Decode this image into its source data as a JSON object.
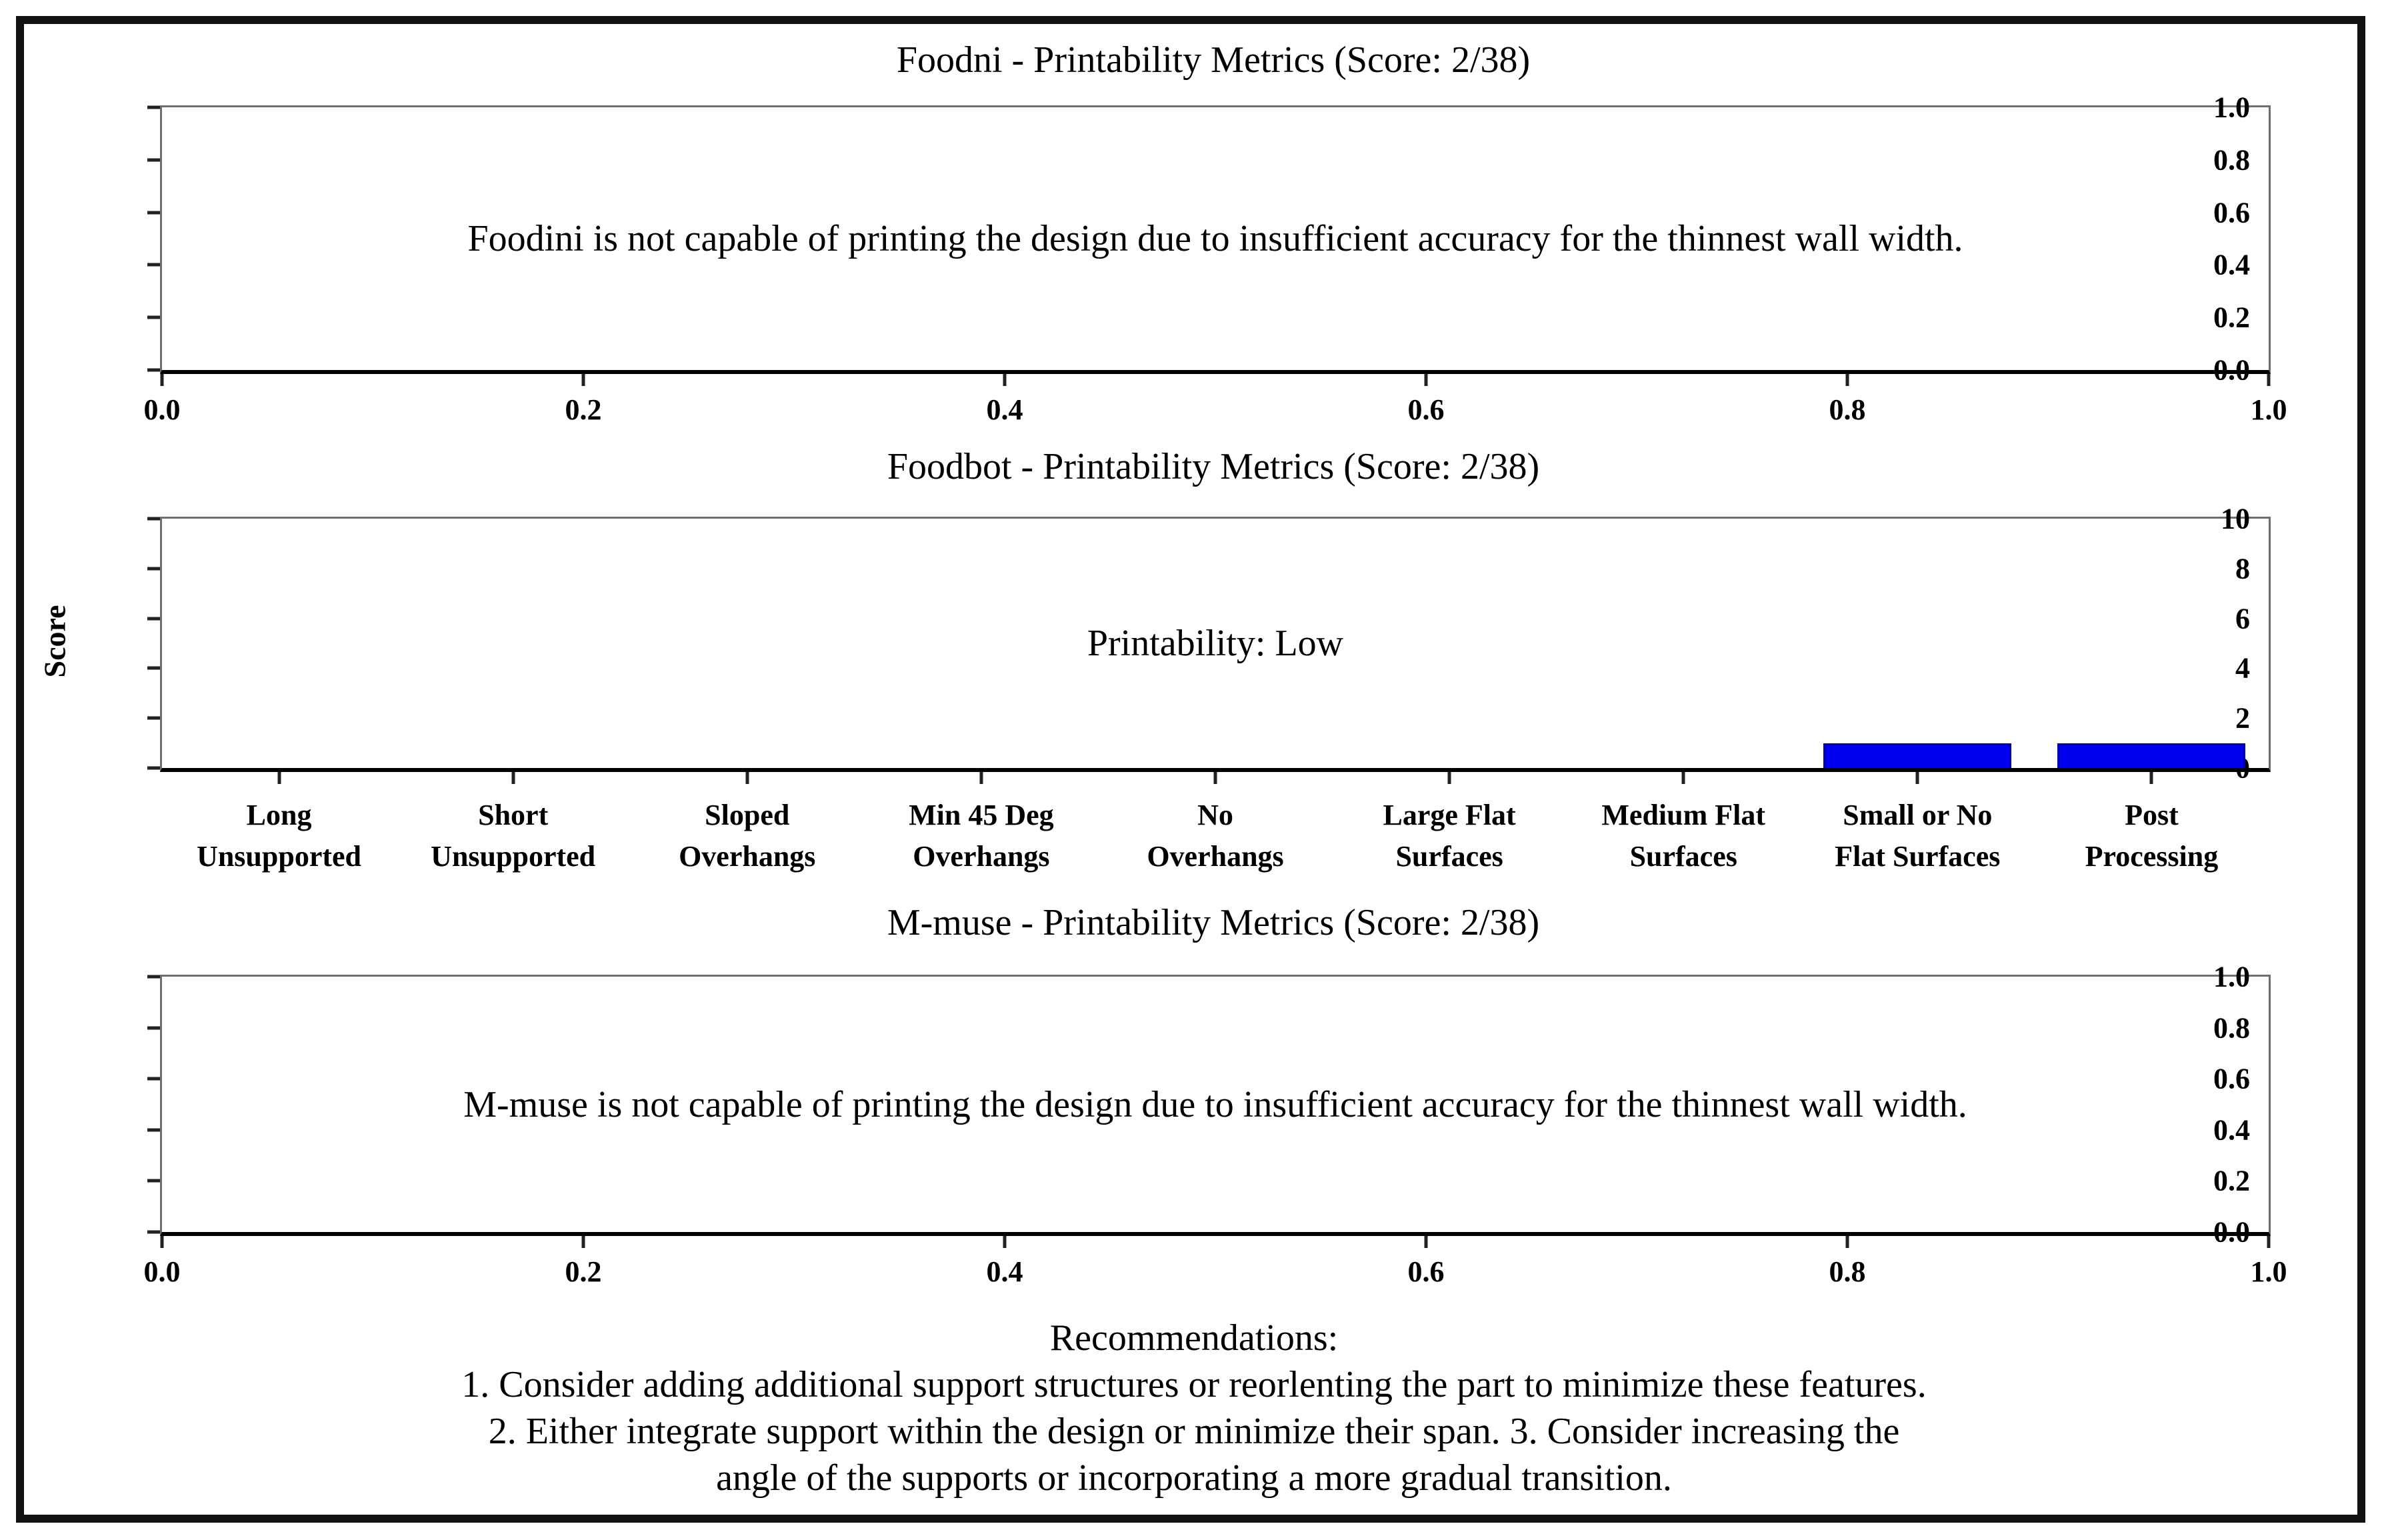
{
  "chart_data": [
    {
      "type": "empty",
      "title": "Foodni - Printability Metrics (Score: 2/38)",
      "annotation": "Foodini is not capable of printing the design due to insufficient accuracy for the thinnest wall width.",
      "xlabel": "",
      "ylabel": "",
      "xlim": [
        0.0,
        1.0
      ],
      "ylim": [
        0.0,
        1.0
      ],
      "x_ticks": [
        "0.0",
        "0.2",
        "0.4",
        "0.6",
        "0.8",
        "1.0"
      ],
      "y_ticks": [
        "0.0",
        "0.2",
        "0.4",
        "0.6",
        "0.8",
        "1.0"
      ],
      "grid": false
    },
    {
      "type": "bar",
      "title": "Foodbot - Printability Metrics (Score: 2/38)",
      "annotation": "Printability: Low",
      "xlabel": "",
      "ylabel": "Score",
      "ylim": [
        0,
        10
      ],
      "y_ticks": [
        "0",
        "2",
        "4",
        "6",
        "8",
        "10"
      ],
      "categories": [
        "Long\nUnsupported",
        "Short\nUnsupported",
        "Sloped\nOverhangs",
        "Min 45 Deg\nOverhangs",
        "No\nOverhangs",
        "Large Flat\nSurfaces",
        "Medium Flat\nSurfaces",
        "Small or No\nFlat Surfaces",
        "Post\nProcessing"
      ],
      "values": [
        0,
        0,
        0,
        0,
        0,
        0,
        0,
        1,
        1
      ],
      "bar_color": "#0000ee",
      "grid": false
    },
    {
      "type": "empty",
      "title": "M-muse - Printability Metrics (Score: 2/38)",
      "annotation": "M-muse is not capable of printing the design due to insufficient accuracy for the thinnest wall width.",
      "xlabel": "",
      "ylabel": "",
      "xlim": [
        0.0,
        1.0
      ],
      "ylim": [
        0.0,
        1.0
      ],
      "x_ticks": [
        "0.0",
        "0.2",
        "0.4",
        "0.6",
        "0.8",
        "1.0"
      ],
      "y_ticks": [
        "0.0",
        "0.2",
        "0.4",
        "0.6",
        "0.8",
        "1.0"
      ],
      "grid": false
    }
  ],
  "recommendations": {
    "heading": "Recommendations:",
    "lines": [
      "1. Consider adding additional support structures or reorlenting the part to minimize these features.",
      "2. Either integrate support within the design or minimize their span. 3. Consider increasing the",
      "angle of the supports or incorporating a more gradual transition."
    ]
  }
}
